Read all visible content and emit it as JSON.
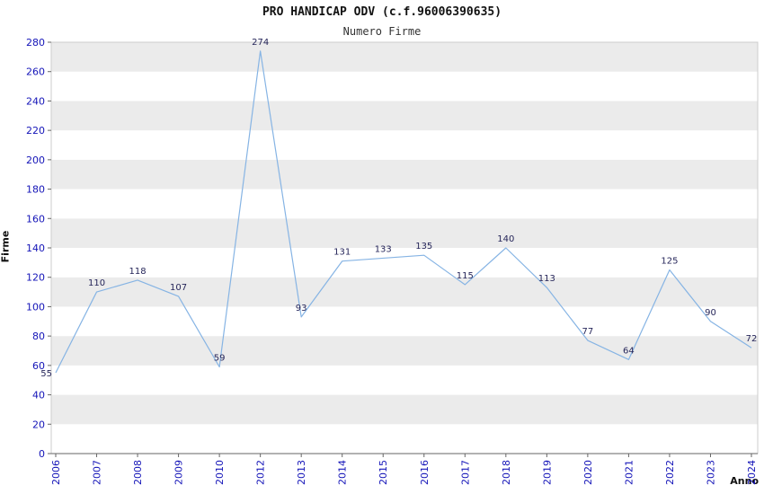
{
  "chart_data": {
    "type": "line",
    "title": "PRO HANDICAP ODV (c.f.96006390635)",
    "subtitle": "Numero Firme",
    "xlabel": "Anno",
    "ylabel": "Firme",
    "categories": [
      "2006",
      "2007",
      "2008",
      "2009",
      "2010",
      "2012",
      "2013",
      "2014",
      "2015",
      "2016",
      "2017",
      "2018",
      "2019",
      "2020",
      "2021",
      "2022",
      "2023",
      "2024"
    ],
    "values": [
      55,
      110,
      118,
      107,
      59,
      274,
      93,
      131,
      133,
      135,
      115,
      140,
      113,
      77,
      64,
      125,
      90,
      72
    ],
    "ylim": [
      0,
      280
    ],
    "ytick_step": 20,
    "grid": "horizontal-alternating-bands",
    "legend": "none",
    "colors": {
      "line": "#86b4e4",
      "tick_label": "#1414b8",
      "data_label": "#26265a",
      "band_gray": "#ebebeb",
      "band_white": "#ffffff",
      "frame": "#cccccc",
      "axis": "#666666",
      "title": "#111111"
    }
  }
}
